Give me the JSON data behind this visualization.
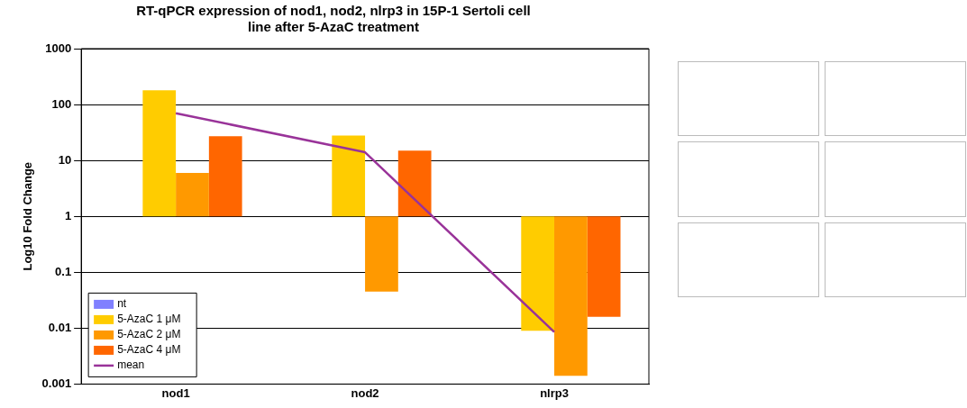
{
  "chart_data": {
    "type": "bar",
    "title": "RT-qPCR expression of nod1, nod2, nlrp3 in 15P-1 Sertoli cell line after 5-AzaC treatment",
    "ylabel": "Log10 Fold Change",
    "categories": [
      "nod1",
      "nod2",
      "nlrp3"
    ],
    "log": "y",
    "ylim": [
      0.001,
      1000
    ],
    "yticks": [
      0.001,
      0.01,
      0.1,
      1,
      10,
      100,
      1000
    ],
    "grid": "y",
    "legend": "bottom left",
    "series": [
      {
        "name": "nt",
        "color": "#8080ff",
        "values": [
          null,
          null,
          null
        ]
      },
      {
        "name": "5-AzaC 1 μM",
        "color": "#ffcc00",
        "base": [
          1,
          1,
          1
        ],
        "values": [
          179,
          27,
          -0.991
        ]
      },
      {
        "name": "5-AzaC 2 μM",
        "color": "#ff9900",
        "base": [
          1,
          1,
          1
        ],
        "values": [
          5,
          -0.955,
          -0.9986
        ]
      },
      {
        "name": "5-AzaC 4 μM",
        "color": "#ff6600",
        "base": [
          1,
          1,
          1
        ],
        "values": [
          26,
          14,
          -0.984
        ]
      },
      {
        "name": "mean",
        "type": "line",
        "color": "#993399",
        "values": [
          70,
          14,
          0.0085
        ]
      }
    ]
  }
}
